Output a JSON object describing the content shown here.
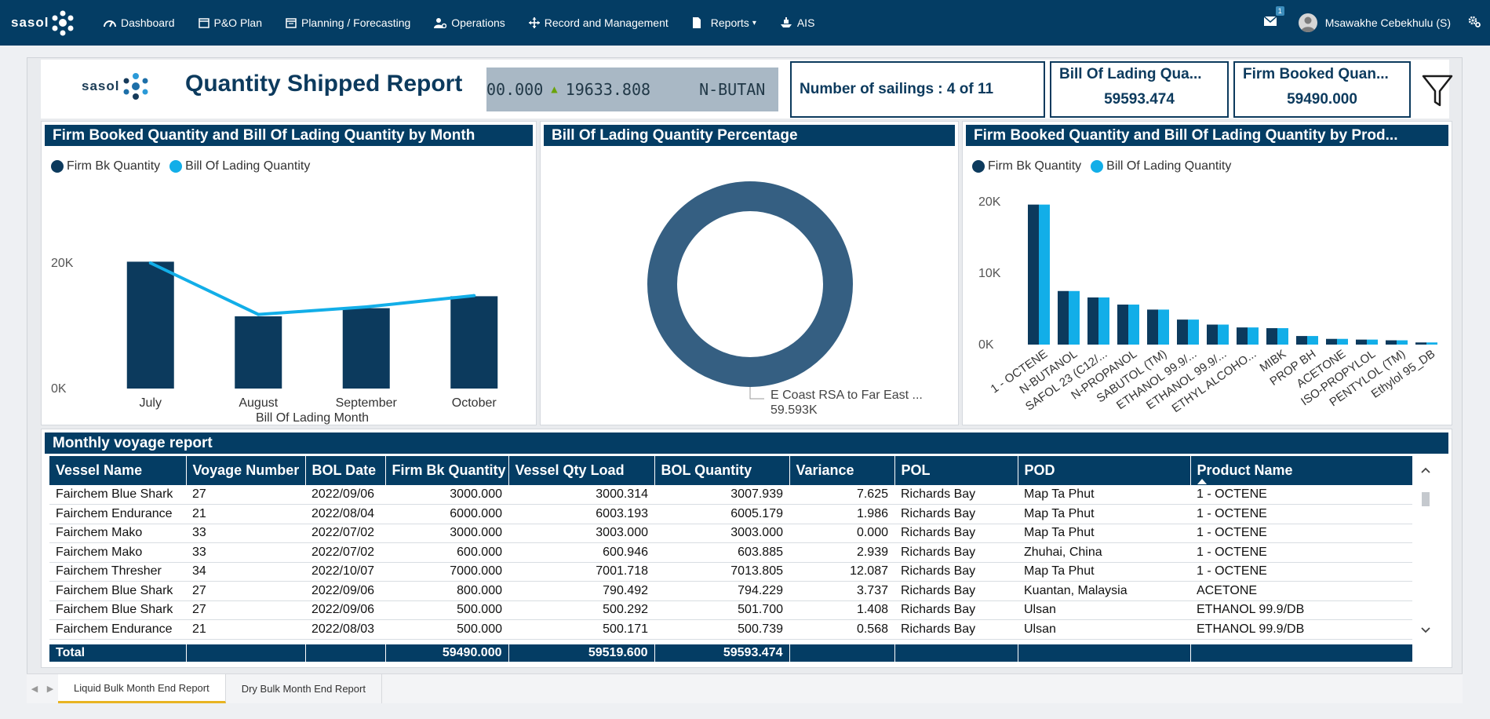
{
  "app": {
    "brand": "sasol",
    "nav": [
      {
        "label": "Dashboard",
        "icon": "dashboard-icon"
      },
      {
        "label": "P&O Plan",
        "icon": "calendar-icon"
      },
      {
        "label": "Planning / Forecasting",
        "icon": "calendar-edit-icon"
      },
      {
        "label": "Operations",
        "icon": "user-gear-icon"
      },
      {
        "label": "Record and Management",
        "icon": "move-arrows-icon"
      },
      {
        "label": "Reports",
        "icon": "file-icon"
      },
      {
        "label": "AIS",
        "icon": "ship-icon"
      }
    ],
    "mail_count": "1",
    "user_name": "Msawakhe Cebekhulu (S)"
  },
  "report": {
    "logo_text": "sasol",
    "title": "Quantity Shipped Report",
    "ticker_text": "00.000",
    "ticker_value": "19633.808",
    "ticker_product": "N-BUTAN",
    "sailings": "Number of sailings : 4 of 11",
    "kpi_bol_label": "Bill Of Lading Qua...",
    "kpi_bol_value": "59593.474",
    "kpi_fb_label": "Firm Booked Quan...",
    "kpi_fb_value": "59490.000"
  },
  "colors": {
    "navy": "#043d64",
    "dark_series": "#0c3a5d",
    "light_series": "#12aee8",
    "donut": "#355f82"
  },
  "panels": {
    "month_title": "Firm Booked Quantity and Bill Of Lading Quantity by Month",
    "pct_title": "Bill Of Lading Quantity Percentage",
    "product_title": "Firm Booked Quantity and Bill Of Lading Quantity by Prod...",
    "legend_fb": "Firm Bk Quantity",
    "legend_bol": "Bill Of Lading Quantity",
    "table_title": "Monthly voyage report"
  },
  "chart_data": [
    {
      "type": "bar",
      "title": "Firm Booked Quantity and Bill Of Lading Quantity by Month",
      "xlabel": "Bill Of Lading Month",
      "ylabel": "",
      "categories": [
        "July",
        "August",
        "September",
        "October"
      ],
      "series": [
        {
          "name": "Firm Bk Quantity",
          "type": "bar",
          "values": [
            20200,
            11500,
            12800,
            14700
          ]
        },
        {
          "name": "Bill Of Lading Quantity",
          "type": "line",
          "values": [
            20000,
            11800,
            13000,
            14800
          ]
        }
      ],
      "yticks": [
        "0K",
        "20K"
      ],
      "ylim": [
        0,
        20000
      ],
      "legend": "top-left"
    },
    {
      "type": "pie",
      "title": "Bill Of Lading Quantity Percentage",
      "donut": true,
      "slices": [
        {
          "label": "E Coast RSA to Far East ...",
          "value": 59593,
          "display": "59.593K"
        }
      ]
    },
    {
      "type": "bar",
      "title": "Firm Booked Quantity and Bill Of Lading Quantity by Prod...",
      "categories": [
        "1 - OCTENE",
        "N-BUTANOL",
        "SAFOL 23 (C12/...",
        "N-PROPANOL",
        "SABUTOL (TM)",
        "ETHANOL 99.9/...",
        "ETHANOL 99.9/...",
        "ETHYL ALCOHO...",
        "MIBK",
        "PROP BH",
        "ACETONE",
        "ISO-PROPYLOL",
        "PENTYLOL (TM)",
        "Ethylol 95_DB"
      ],
      "series": [
        {
          "name": "Firm Bk Quantity",
          "values": [
            19600,
            7500,
            6600,
            5600,
            4900,
            3500,
            2800,
            2400,
            2300,
            1200,
            800,
            700,
            600,
            300
          ]
        },
        {
          "name": "Bill Of Lading Quantity",
          "values": [
            19600,
            7500,
            6600,
            5600,
            4900,
            3500,
            2800,
            2400,
            2300,
            1200,
            800,
            700,
            600,
            300
          ]
        }
      ],
      "yticks": [
        "0K",
        "10K",
        "20K"
      ],
      "ylim": [
        0,
        20000
      ],
      "legend": "top-left"
    }
  ],
  "table": {
    "columns": [
      "Vessel Name",
      "Voyage Number",
      "BOL Date",
      "Firm Bk Quantity",
      "Vessel Qty Load",
      "BOL Quantity",
      "Variance",
      "POL",
      "POD",
      "Product Name"
    ],
    "rows": [
      [
        "Fairchem Blue Shark",
        "27",
        "2022/09/06",
        "3000.000",
        "3000.314",
        "3007.939",
        "7.625",
        "Richards Bay",
        "Map Ta Phut",
        "1 - OCTENE"
      ],
      [
        "Fairchem Endurance",
        "21",
        "2022/08/04",
        "6000.000",
        "6003.193",
        "6005.179",
        "1.986",
        "Richards Bay",
        "Map Ta Phut",
        "1 - OCTENE"
      ],
      [
        "Fairchem Mako",
        "33",
        "2022/07/02",
        "3000.000",
        "3003.000",
        "3003.000",
        "0.000",
        "Richards Bay",
        "Map Ta Phut",
        "1 - OCTENE"
      ],
      [
        "Fairchem Mako",
        "33",
        "2022/07/02",
        "600.000",
        "600.946",
        "603.885",
        "2.939",
        "Richards Bay",
        "Zhuhai, China",
        "1 - OCTENE"
      ],
      [
        "Fairchem Thresher",
        "34",
        "2022/10/07",
        "7000.000",
        "7001.718",
        "7013.805",
        "12.087",
        "Richards Bay",
        "Map Ta Phut",
        "1 - OCTENE"
      ],
      [
        "Fairchem Blue Shark",
        "27",
        "2022/09/06",
        "800.000",
        "790.492",
        "794.229",
        "3.737",
        "Richards Bay",
        "Kuantan, Malaysia",
        "ACETONE"
      ],
      [
        "Fairchem Blue Shark",
        "27",
        "2022/09/06",
        "500.000",
        "500.292",
        "501.700",
        "1.408",
        "Richards Bay",
        "Ulsan",
        "ETHANOL 99.9/DB"
      ],
      [
        "Fairchem Endurance",
        "21",
        "2022/08/03",
        "500.000",
        "500.171",
        "500.739",
        "0.568",
        "Richards Bay",
        "Ulsan",
        "ETHANOL 99.9/DB"
      ]
    ],
    "total": {
      "label": "Total",
      "firm_bk": "59490.000",
      "vessel_qty": "59519.600",
      "bol_qty": "59593.474"
    }
  },
  "tabs": [
    "Liquid Bulk Month End Report",
    "Dry Bulk Month End Report"
  ]
}
